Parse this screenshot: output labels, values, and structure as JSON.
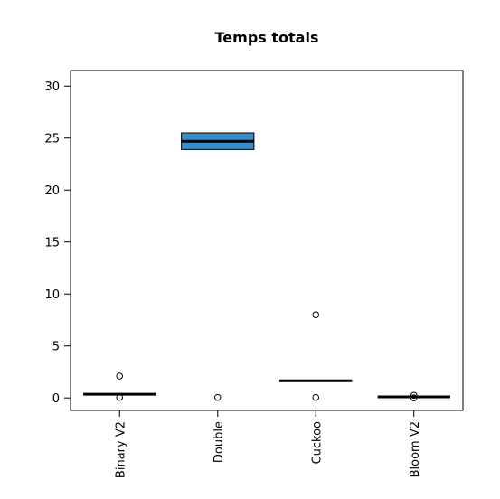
{
  "chart_data": {
    "type": "boxplot",
    "title": "Temps totals",
    "xlabel": "",
    "ylabel": "",
    "ylim": [
      -1.2,
      31.5
    ],
    "yticks": [
      0,
      5,
      10,
      15,
      20,
      25,
      30
    ],
    "categories": [
      "Binary V2",
      "Double",
      "Cuckoo",
      "Bloom V2"
    ],
    "boxes": [
      {
        "category": "Binary V2",
        "q1": 0.35,
        "median": 0.35,
        "q3": 0.35,
        "whisker_low": 0.35,
        "whisker_high": 0.35,
        "outliers": [
          2.1,
          0.05
        ]
      },
      {
        "category": "Double",
        "q1": 23.9,
        "median": 24.7,
        "q3": 25.5,
        "whisker_low": 23.9,
        "whisker_high": 25.5,
        "outliers": [
          0.05
        ]
      },
      {
        "category": "Cuckoo",
        "q1": 1.65,
        "median": 1.65,
        "q3": 1.65,
        "whisker_low": 1.65,
        "whisker_high": 1.65,
        "outliers": [
          8.0,
          0.05
        ]
      },
      {
        "category": "Bloom V2",
        "q1": 0.1,
        "median": 0.1,
        "q3": 0.1,
        "whisker_low": 0.1,
        "whisker_high": 0.1,
        "outliers": [
          0.25,
          0.0
        ]
      }
    ],
    "box_fill_colors": [
      "#3b8dc9",
      "#3b8dc9",
      "#3b8dc9",
      "#3b8dc9"
    ],
    "grid": false,
    "legend": "none"
  }
}
